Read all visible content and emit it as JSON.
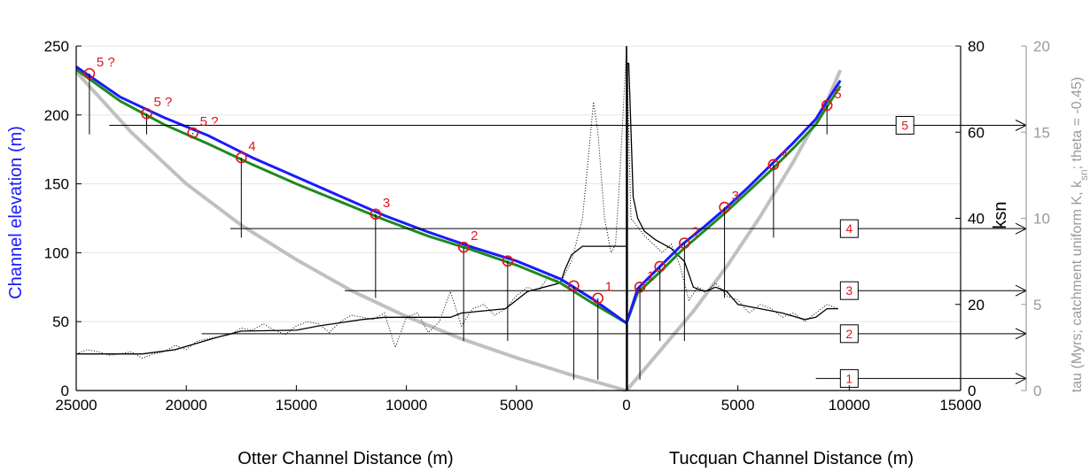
{
  "chart_data": {
    "type": "line",
    "axes": {
      "left_y": {
        "label": "Channel elevation (m)",
        "range": [
          0,
          250
        ],
        "ticks": [
          "0",
          "50",
          "100",
          "150",
          "200",
          "250"
        ]
      },
      "right_y": {
        "label": "ksn",
        "range": [
          0,
          80
        ],
        "ticks": [
          "0",
          "20",
          "40",
          "60",
          "80"
        ]
      },
      "far_right_y": {
        "label": "tau (Myrs; catchment uniform K, k",
        "label_sub": "sn",
        "label_end": "; theta = -0.45)",
        "range": [
          0,
          20
        ],
        "ticks": [
          "0",
          "5",
          "10",
          "15",
          "20"
        ]
      },
      "x_left": {
        "label": "Otter Channel Distance (m)",
        "range": [
          25000,
          0
        ],
        "ticks": [
          "25000",
          "20000",
          "15000",
          "10000",
          "5000",
          "0"
        ]
      },
      "x_right": {
        "label": "Tucquan Channel Distance (m)",
        "range": [
          0,
          15000
        ],
        "ticks": [
          "0",
          "5000",
          "10000",
          "15000"
        ]
      }
    },
    "grid": true,
    "colors": {
      "elevation": "#1a1aff",
      "elevation_fit": "#1e8a1e",
      "tau": "#c0c0c0",
      "ksn": "#000000",
      "markers": "#e0141a"
    },
    "series": [
      {
        "side": "otter",
        "x": [
          25000,
          23000,
          21000,
          19000,
          17000,
          15000,
          13000,
          11000,
          9000,
          7000,
          5000,
          3000,
          1500,
          0
        ],
        "y": [
          235,
          213,
          198,
          185,
          169,
          155,
          141,
          127,
          115,
          104,
          94,
          81,
          66,
          49
        ]
      },
      {
        "side": "tucquan",
        "x": [
          0,
          500,
          1500,
          2500,
          3500,
          4500,
          5500,
          6500,
          7500,
          8500,
          9000,
          9600
        ],
        "y": [
          49,
          74,
          90,
          106,
          119,
          133,
          148,
          164,
          180,
          197,
          210,
          225
        ]
      },
      {
        "side": "otter",
        "x": [
          25000,
          23000,
          21000,
          19000,
          17000,
          15000,
          13000,
          11000,
          9000,
          7000,
          5000,
          3000,
          1500,
          0
        ],
        "y": [
          233,
          210,
          193,
          179,
          164,
          150,
          137,
          124,
          112,
          102,
          91,
          78,
          63,
          49
        ]
      },
      {
        "side": "tucquan",
        "x": [
          0,
          500,
          1500,
          2500,
          3500,
          4500,
          5500,
          6500,
          7500,
          8500,
          9000,
          9600
        ],
        "y": [
          49,
          71,
          86,
          102,
          116,
          130,
          145,
          160,
          176,
          193,
          206,
          221
        ]
      },
      {
        "side": "otter",
        "x": [
          25000,
          22500,
          20000,
          17500,
          15000,
          12500,
          10000,
          7500,
          5000,
          2500,
          0
        ],
        "tau": [
          18.5,
          15.0,
          12.0,
          9.6,
          7.6,
          5.8,
          4.3,
          3.0,
          1.9,
          0.9,
          0
        ]
      },
      {
        "side": "tucquan",
        "x": [
          0,
          1500,
          3000,
          4500,
          6000,
          7500,
          9000,
          9600
        ],
        "tau": [
          0,
          2.3,
          4.6,
          7.2,
          10.1,
          13.3,
          16.8,
          18.6
        ]
      },
      {
        "side": "otter",
        "x": [
          25000,
          22500,
          22000,
          20500,
          19500,
          18500,
          17500,
          15000,
          14000,
          12000,
          11000,
          9000,
          8000,
          7500,
          5500,
          4500,
          3000,
          2800,
          2500,
          2000,
          1500,
          1000,
          500,
          0
        ],
        "ksn": [
          8.5,
          8.5,
          8.5,
          9.5,
          11,
          12.5,
          13.8,
          14,
          15,
          16.5,
          17,
          17,
          17,
          18,
          19,
          23,
          25,
          28,
          31.5,
          33.5,
          33.5,
          33.5,
          33.5,
          33.5
        ]
      },
      {
        "side": "tucquan",
        "x": [
          0,
          100,
          300,
          500,
          800,
          1300,
          2000,
          2600,
          3000,
          3500,
          4000,
          4500,
          5000,
          6000,
          7000,
          8000,
          8500,
          9000,
          9500
        ],
        "ksn": [
          76,
          76,
          45,
          40,
          37,
          35,
          33,
          30,
          24,
          23,
          24,
          23,
          20,
          19,
          18,
          16.5,
          17,
          19,
          19
        ]
      }
    ],
    "ksn_dotted_raw": {
      "otter": {
        "x": [
          25000,
          24500,
          24000,
          23500,
          23000,
          22500,
          22000,
          21500,
          21000,
          20500,
          20000,
          19500,
          19000,
          18500,
          18000,
          17500,
          17000,
          16500,
          16000,
          15500,
          15000,
          14500,
          14000,
          13500,
          13000,
          12500,
          12000,
          11500,
          11000,
          10500,
          10000,
          9500,
          9000,
          8500,
          8000,
          7500,
          7000,
          6500,
          6000,
          5500,
          5000,
          4500,
          4000,
          3500,
          3000,
          2500,
          2000,
          1700,
          1500,
          1300,
          1000,
          700,
          500,
          300,
          0
        ],
        "ksn": [
          8.5,
          9.5,
          9.0,
          8.2,
          8.5,
          9.0,
          7.5,
          8.5,
          9.0,
          10.5,
          9.5,
          11.5,
          12.0,
          12.5,
          13.0,
          14.5,
          14.0,
          15.5,
          14.0,
          13.0,
          15.0,
          16.0,
          15.5,
          13.5,
          16.0,
          17.5,
          17.0,
          16.5,
          18.0,
          10.0,
          17.0,
          18.0,
          13.5,
          16.0,
          23.0,
          15.0,
          19.0,
          20.0,
          17.5,
          19.0,
          22.0,
          24.0,
          23.0,
          27.0,
          25.0,
          30.0,
          40.0,
          56.0,
          67.0,
          60.0,
          40.0,
          32.0,
          34.0,
          50.0,
          80.0
        ]
      },
      "tucquan": {
        "x": [
          0,
          200,
          500,
          800,
          1200,
          1600,
          2000,
          2400,
          2800,
          3200,
          3600,
          4000,
          4500,
          5000,
          5500,
          6000,
          6500,
          7000,
          7500,
          8000,
          8500,
          9000,
          9500
        ],
        "ksn": [
          80,
          40,
          38,
          36,
          34,
          32,
          34,
          29,
          21,
          24,
          23,
          25,
          22,
          21,
          18,
          20,
          19,
          17,
          18,
          16,
          18,
          20,
          19
        ]
      }
    },
    "knickpoints": {
      "otter": [
        {
          "x": 24400,
          "elev": 230,
          "label": "5 ?",
          "ksn": 59.5
        },
        {
          "x": 21800,
          "elev": 201,
          "label": "5 ?",
          "ksn": 59.5
        },
        {
          "x": 19700,
          "elev": 187,
          "label": "5 ?",
          "ksn": 59.5
        },
        {
          "x": 17500,
          "elev": 169,
          "label": "4",
          "ksn": 35.5
        },
        {
          "x": 11400,
          "elev": 128,
          "label": "3",
          "ksn": 21.5
        },
        {
          "x": 7400,
          "elev": 104,
          "label": "2",
          "ksn": 11.5
        },
        {
          "x": 5400,
          "elev": 94,
          "label": "",
          "ksn": 11.5
        },
        {
          "x": 2400,
          "elev": 76,
          "label": "",
          "ksn": 2.5
        },
        {
          "x": 1300,
          "elev": 67,
          "label": "1",
          "ksn": 2.5
        }
      ],
      "tucquan": [
        {
          "x": 600,
          "elev": 75,
          "label": "1",
          "ksn": 2.5
        },
        {
          "x": 1500,
          "elev": 90,
          "label": "",
          "ksn": 11.5
        },
        {
          "x": 2600,
          "elev": 107,
          "label": "2",
          "ksn": 11.5
        },
        {
          "x": 4400,
          "elev": 133,
          "label": "3",
          "ksn": 21.5
        },
        {
          "x": 6600,
          "elev": 164,
          "label": "4",
          "ksn": 35.5
        },
        {
          "x": 9000,
          "elev": 207,
          "label": "5",
          "ksn": 59.5
        }
      ]
    },
    "tau_levels": [
      {
        "label": "1",
        "tau": 0.7,
        "from_tucquan_x": 8500,
        "box_tucquan_x": 10000
      },
      {
        "label": "2",
        "tau": 3.3,
        "from_otter_x": 19300,
        "box_tucquan_x": 10000
      },
      {
        "label": "3",
        "tau": 5.8,
        "from_otter_x": 12800,
        "box_tucquan_x": 10000
      },
      {
        "label": "4",
        "tau": 9.4,
        "from_otter_x": 18000,
        "box_tucquan_x": 10000
      },
      {
        "label": "5",
        "tau": 15.4,
        "from_otter_x": 23500,
        "box_tucquan_x": 12500
      }
    ]
  }
}
